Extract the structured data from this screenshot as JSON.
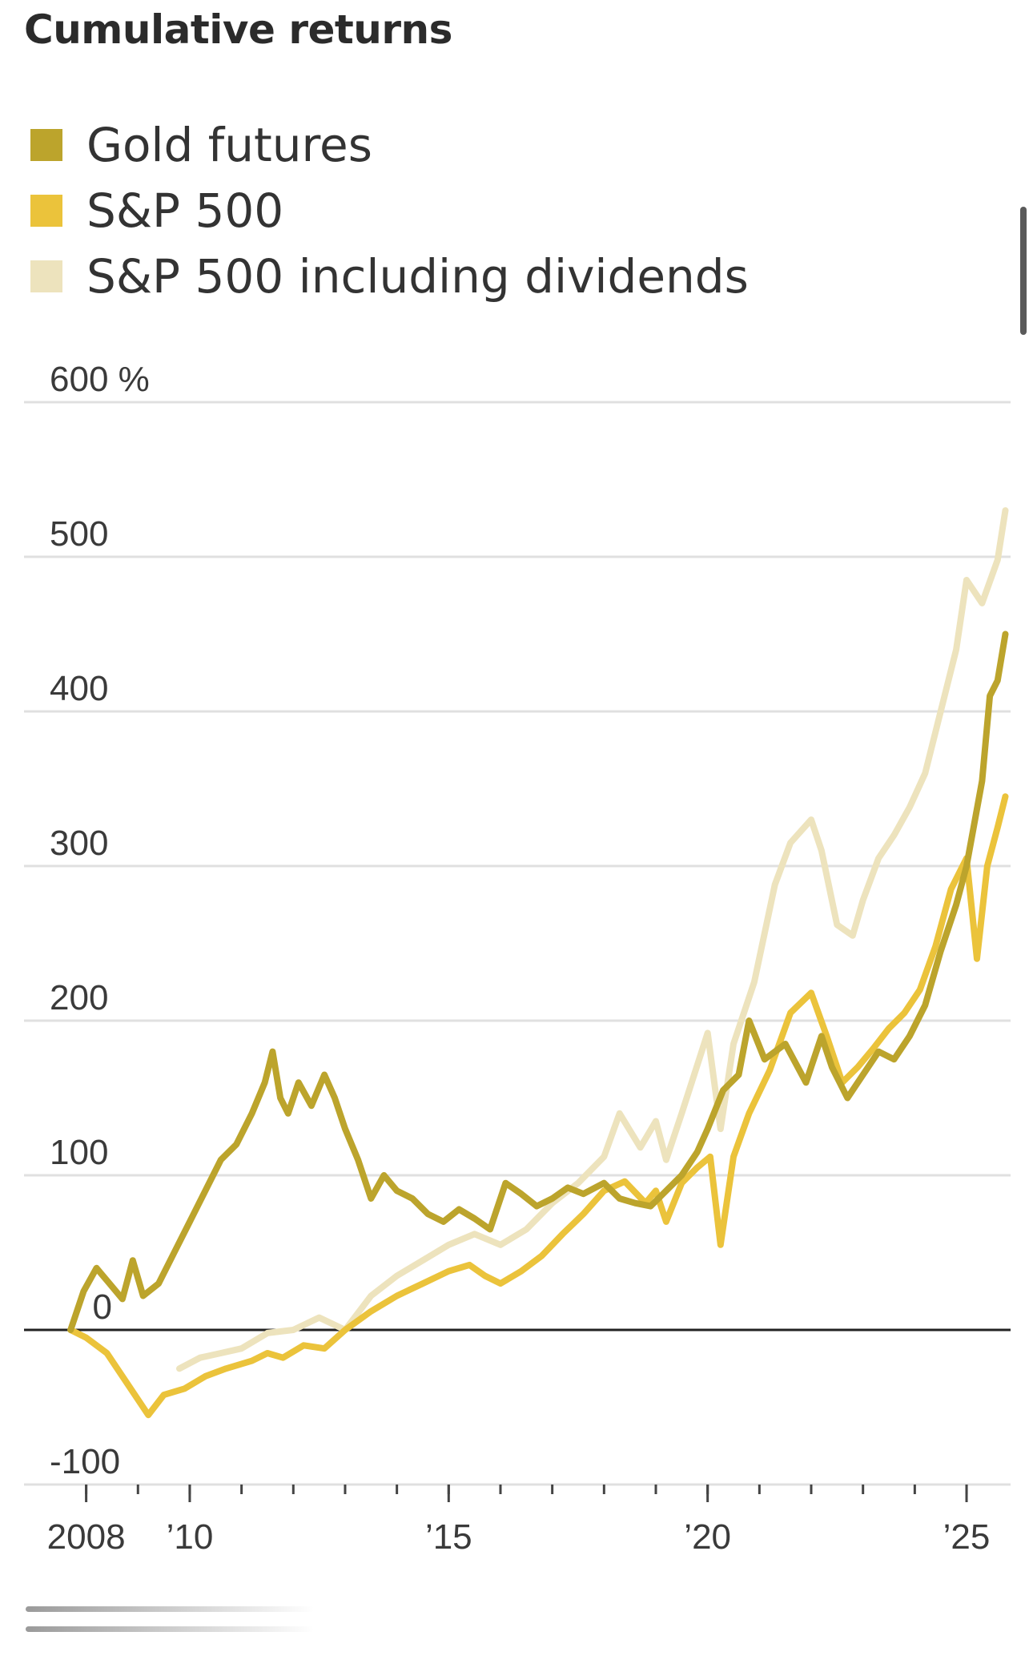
{
  "chart_data": {
    "type": "line",
    "title": "Cumulative returns",
    "xlabel": "",
    "ylabel": "",
    "ylim": [
      -100,
      600
    ],
    "yticks": [
      {
        "value": 600,
        "label": "600 %"
      },
      {
        "value": 500,
        "label": "500"
      },
      {
        "value": 400,
        "label": "400"
      },
      {
        "value": 300,
        "label": "300"
      },
      {
        "value": 200,
        "label": "200"
      },
      {
        "value": 100,
        "label": "100"
      },
      {
        "value": 0,
        "label": "0"
      },
      {
        "value": -100,
        "label": "-100"
      }
    ],
    "xlim": [
      2006.8,
      2025.85
    ],
    "xticks_minor": [
      2008,
      2009,
      2010,
      2011,
      2012,
      2013,
      2014,
      2015,
      2016,
      2017,
      2018,
      2019,
      2020,
      2021,
      2022,
      2023,
      2024,
      2025
    ],
    "xticks_major": [
      {
        "value": 2008,
        "label": "2008"
      },
      {
        "value": 2010,
        "label": "’10"
      },
      {
        "value": 2015,
        "label": "’15"
      },
      {
        "value": 2020,
        "label": "’20"
      },
      {
        "value": 2025,
        "label": "’25"
      }
    ],
    "grid": true,
    "legend_position": "top-left",
    "series": [
      {
        "name": "S&P 500 including dividends",
        "color": "#ede3bd",
        "x": [
          2009.8,
          2010.2,
          2010.6,
          2011.0,
          2011.5,
          2012.0,
          2012.5,
          2013.0,
          2013.5,
          2014.0,
          2014.5,
          2015.0,
          2015.5,
          2016.0,
          2016.5,
          2017.0,
          2017.5,
          2018.0,
          2018.3,
          2018.7,
          2019.0,
          2019.2,
          2019.5,
          2020.0,
          2020.25,
          2020.5,
          2020.9,
          2021.3,
          2021.6,
          2022.0,
          2022.2,
          2022.5,
          2022.8,
          2023.0,
          2023.3,
          2023.6,
          2023.9,
          2024.2,
          2024.5,
          2024.8,
          2025.0,
          2025.3,
          2025.6,
          2025.75
        ],
        "values": [
          -25,
          -18,
          -15,
          -12,
          -2,
          0,
          8,
          0,
          22,
          35,
          45,
          55,
          62,
          55,
          65,
          82,
          95,
          112,
          140,
          118,
          135,
          110,
          140,
          192,
          130,
          185,
          225,
          288,
          315,
          330,
          310,
          262,
          255,
          278,
          305,
          320,
          338,
          360,
          400,
          440,
          485,
          470,
          498,
          530
        ]
      },
      {
        "name": "S&P 500",
        "color": "#ebc33b",
        "x": [
          2007.7,
          2008.0,
          2008.4,
          2008.8,
          2009.2,
          2009.5,
          2009.9,
          2010.3,
          2010.7,
          2011.2,
          2011.5,
          2011.8,
          2012.2,
          2012.6,
          2013.0,
          2013.5,
          2014.0,
          2014.5,
          2015.0,
          2015.4,
          2015.7,
          2016.0,
          2016.4,
          2016.8,
          2017.2,
          2017.6,
          2018.0,
          2018.4,
          2018.8,
          2019.0,
          2019.2,
          2019.5,
          2019.8,
          2020.05,
          2020.25,
          2020.5,
          2020.8,
          2021.2,
          2021.6,
          2022.0,
          2022.3,
          2022.6,
          2022.9,
          2023.2,
          2023.5,
          2023.8,
          2024.1,
          2024.4,
          2024.7,
          2025.0,
          2025.2,
          2025.4,
          2025.6,
          2025.75
        ],
        "values": [
          0,
          -5,
          -15,
          -35,
          -55,
          -42,
          -38,
          -30,
          -25,
          -20,
          -15,
          -18,
          -10,
          -12,
          0,
          12,
          22,
          30,
          38,
          42,
          35,
          30,
          38,
          48,
          62,
          75,
          90,
          96,
          82,
          90,
          70,
          95,
          105,
          112,
          55,
          112,
          140,
          168,
          205,
          218,
          190,
          160,
          170,
          182,
          195,
          205,
          220,
          248,
          285,
          305,
          240,
          300,
          325,
          345
        ]
      },
      {
        "name": "Gold futures",
        "color": "#bca42c",
        "x": [
          2007.7,
          2007.95,
          2008.2,
          2008.45,
          2008.7,
          2008.9,
          2009.1,
          2009.4,
          2009.7,
          2010.0,
          2010.3,
          2010.6,
          2010.9,
          2011.2,
          2011.45,
          2011.6,
          2011.75,
          2011.9,
          2012.1,
          2012.35,
          2012.6,
          2012.8,
          2013.0,
          2013.25,
          2013.5,
          2013.75,
          2014.0,
          2014.3,
          2014.6,
          2014.9,
          2015.2,
          2015.5,
          2015.8,
          2016.1,
          2016.4,
          2016.7,
          2017.0,
          2017.3,
          2017.6,
          2018.0,
          2018.3,
          2018.6,
          2018.9,
          2019.2,
          2019.5,
          2019.8,
          2020.0,
          2020.3,
          2020.6,
          2020.8,
          2021.1,
          2021.5,
          2021.9,
          2022.2,
          2022.4,
          2022.7,
          2023.0,
          2023.3,
          2023.6,
          2023.9,
          2024.2,
          2024.5,
          2024.8,
          2025.0,
          2025.3,
          2025.45,
          2025.6,
          2025.75
        ],
        "values": [
          0,
          25,
          40,
          30,
          20,
          45,
          22,
          30,
          50,
          70,
          90,
          110,
          120,
          140,
          160,
          180,
          150,
          140,
          160,
          145,
          165,
          150,
          130,
          110,
          85,
          100,
          90,
          85,
          75,
          70,
          78,
          72,
          65,
          95,
          88,
          80,
          85,
          92,
          88,
          95,
          85,
          82,
          80,
          90,
          100,
          115,
          130,
          155,
          165,
          200,
          175,
          185,
          160,
          190,
          170,
          150,
          165,
          180,
          175,
          190,
          210,
          245,
          275,
          300,
          355,
          410,
          420,
          450
        ]
      }
    ]
  }
}
